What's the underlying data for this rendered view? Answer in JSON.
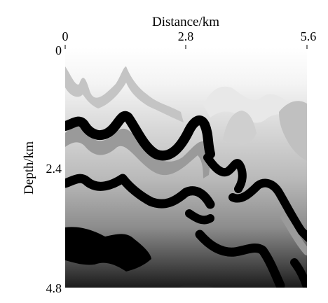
{
  "figure": {
    "type": "seismic-velocity-model",
    "x_axis": {
      "label": "Distance/km",
      "ticks": [
        "0",
        "2.8",
        "5.6"
      ],
      "range": [
        0,
        5.6
      ],
      "position": "top"
    },
    "y_axis": {
      "label": "Depth/km",
      "ticks": [
        "0",
        "2.4",
        "4.8"
      ],
      "range": [
        0,
        4.8
      ],
      "position": "left"
    },
    "colors": {
      "background_top": "#ffffff",
      "background_bottom": "#1c1c1c",
      "layer_light": "#c4c4c4",
      "layer_mid": "#9a9a9a",
      "layer_dark": "#000000"
    }
  }
}
